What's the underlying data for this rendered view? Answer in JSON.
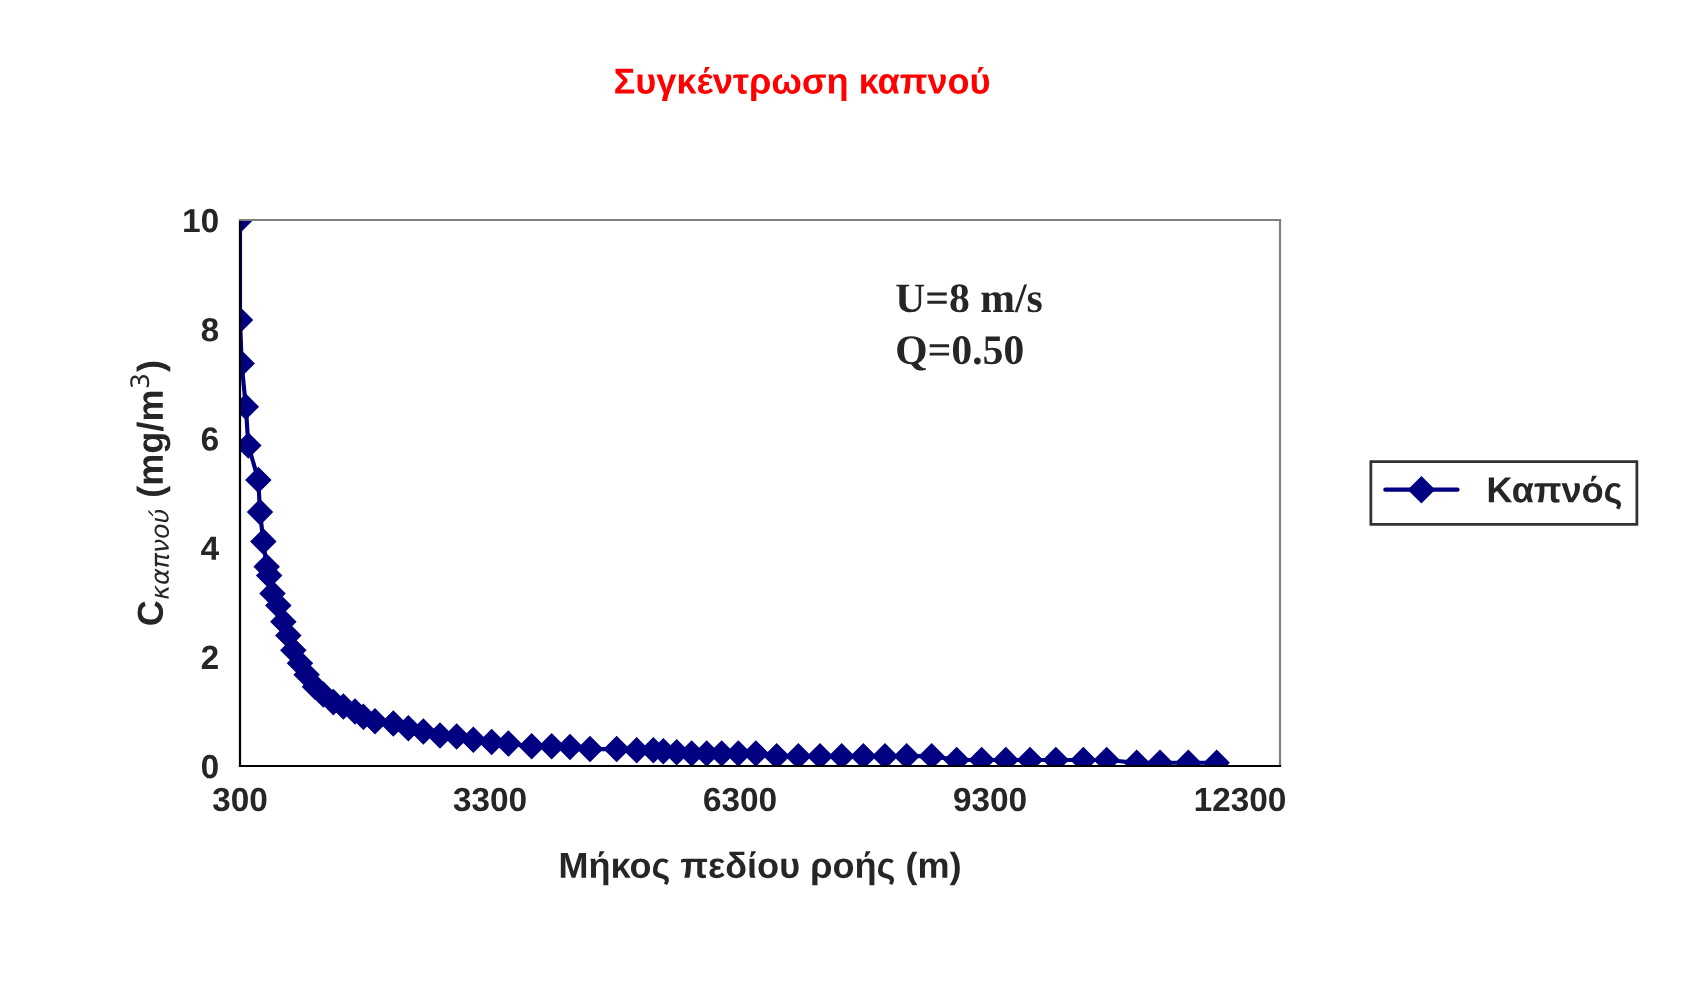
{
  "chart_data": {
    "type": "line",
    "title": "Συγκέντρωση καπνού",
    "xlabel": "Μήκος πεδίου ροής (m)",
    "ylabel": "C$_{καπνού}$ (mg/m$^{3}$)",
    "annotations": [
      "U=8 m/s",
      "Q=0.50"
    ],
    "series": [
      {
        "name": "Καπνός",
        "color": "#000080",
        "x": [
          300,
          300,
          320,
          370,
          400,
          520,
          540,
          580,
          620,
          650,
          690,
          760,
          820,
          880,
          940,
          1020,
          1100,
          1200,
          1300,
          1420,
          1540,
          1680,
          1780,
          1920,
          2140,
          2320,
          2500,
          2700,
          2900,
          3100,
          3320,
          3520,
          3800,
          4040,
          4260,
          4500,
          4820,
          5060,
          5260,
          5380,
          5540,
          5720,
          5900,
          6080,
          6280,
          6490,
          6740,
          7000,
          7260,
          7520,
          7780,
          8040,
          8300,
          8600,
          8900,
          9200,
          9490,
          9780,
          10090,
          10420,
          10700,
          11060,
          11340,
          11680,
          12020
        ],
        "values": [
          10,
          8.17,
          7.37,
          6.58,
          5.87,
          5.24,
          4.65,
          4.11,
          3.65,
          3.49,
          3.16,
          2.94,
          2.64,
          2.39,
          2.12,
          1.88,
          1.67,
          1.45,
          1.31,
          1.17,
          1.09,
          1.0,
          0.9,
          0.82,
          0.78,
          0.69,
          0.63,
          0.56,
          0.54,
          0.48,
          0.44,
          0.41,
          0.36,
          0.36,
          0.35,
          0.31,
          0.31,
          0.29,
          0.29,
          0.27,
          0.25,
          0.23,
          0.23,
          0.23,
          0.23,
          0.23,
          0.18,
          0.18,
          0.18,
          0.18,
          0.18,
          0.18,
          0.18,
          0.18,
          0.11,
          0.11,
          0.11,
          0.11,
          0.11,
          0.11,
          0.11,
          0.06,
          0.06,
          0.06,
          0.06
        ]
      }
    ],
    "marker": "diamond",
    "line_style": "solid",
    "xlim": [
      300,
      12780
    ],
    "xticks": [
      300,
      3300,
      6300,
      9300,
      12300
    ],
    "ylim": [
      0,
      10
    ],
    "yticks": [
      0,
      2,
      4,
      6,
      8,
      10
    ],
    "grid": false,
    "legend": "right"
  }
}
